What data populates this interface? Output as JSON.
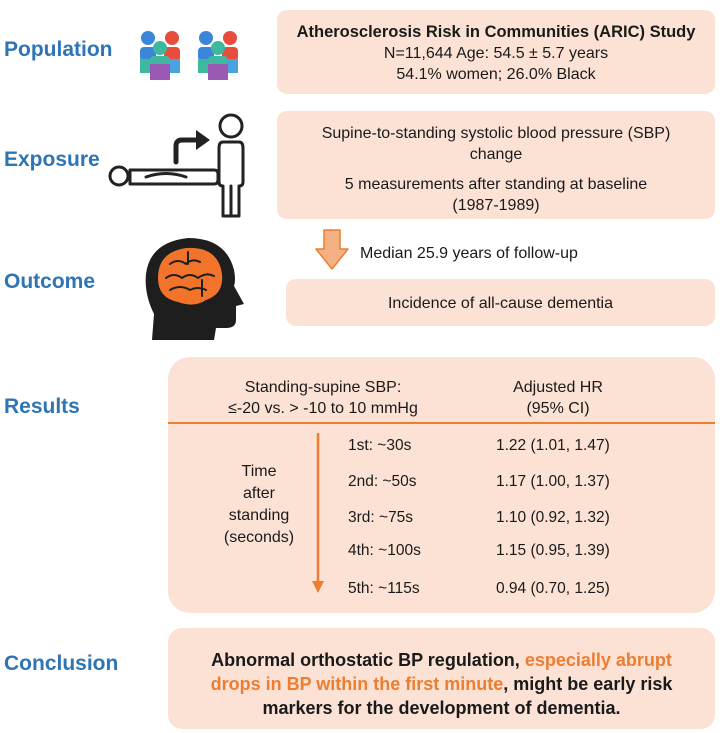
{
  "labels": {
    "population": "Population",
    "exposure": "Exposure",
    "outcome": "Outcome",
    "results": "Results",
    "conclusion": "Conclusion"
  },
  "population_box": {
    "title": "Atherosclerosis Risk in Communities (ARIC) Study",
    "line2": "N=11,644  Age: 54.5 ±  5.7 years",
    "line3": "54.1% women;  26.0% Black"
  },
  "exposure_box": {
    "line1": "Supine-to-standing systolic blood pressure (SBP)",
    "line2": "change",
    "line3": "5 measurements after standing at baseline",
    "line4": "(1987-1989)"
  },
  "follow_up": "Median 25.9 years of follow-up",
  "outcome_box": "Incidence of all-cause dementia",
  "results": {
    "header_left_1": "Standing-supine SBP:",
    "header_left_2": "≤-20  vs. > -10 to 10 mmHg",
    "header_right_1": "Adjusted HR",
    "header_right_2": "(95% CI)",
    "time_label": [
      "Time",
      "after",
      "standing",
      "(seconds)"
    ],
    "rows": [
      {
        "time": "1st: ~30s",
        "hr": "1.22 (1.01, 1.47)"
      },
      {
        "time": "2nd: ~50s",
        "hr": "1.17 (1.00, 1.37)"
      },
      {
        "time": "3rd: ~75s",
        "hr": "1.10 (0.92, 1.32)"
      },
      {
        "time": "4th: ~100s",
        "hr": "1.15 (0.95, 1.39)"
      },
      {
        "time": "5th: ~115s",
        "hr": "0.94 (0.70, 1.25)"
      }
    ]
  },
  "conclusion": {
    "part1": "Abnormal orthostatic BP regulation, ",
    "highlight": "especially abrupt drops in BP within the first minute",
    "part2": ", might be early risk markers for the development of dementia."
  },
  "colors": {
    "label_blue": "#2f75b5",
    "box_fill": "#fbe2d5",
    "accent_orange": "#ed7d31"
  },
  "icons": [
    "people-group-icon",
    "supine-to-standing-icon",
    "brain-head-icon",
    "down-arrow-icon"
  ]
}
